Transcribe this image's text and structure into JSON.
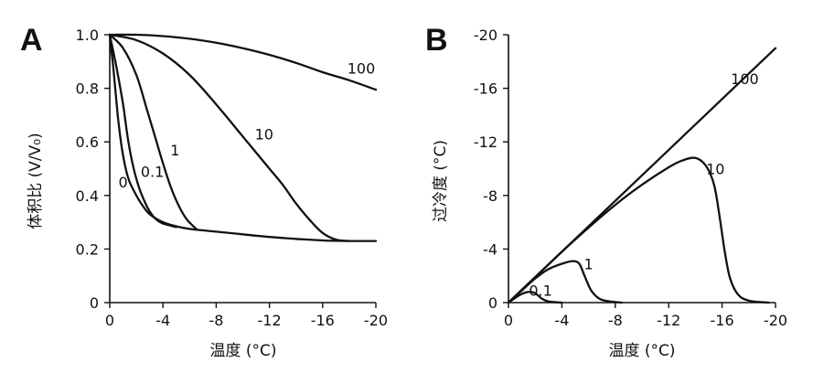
{
  "chart_data": [
    {
      "panel": "A",
      "type": "line",
      "xlabel": "温度 (°C)",
      "ylabel": "体积比 (V/V₀)",
      "xlim": [
        0,
        -20
      ],
      "ylim": [
        0,
        1.0
      ],
      "xticks": [
        0,
        -4,
        -8,
        -12,
        -16,
        -20
      ],
      "xtick_labels": [
        "0",
        "-4",
        "-8",
        "-12",
        "-16",
        "-20"
      ],
      "yticks": [
        0,
        0.2,
        0.4,
        0.6,
        0.8,
        1.0
      ],
      "ytick_labels": [
        "0",
        "0.2",
        "0.4",
        "0.6",
        "0.8",
        "1.0"
      ],
      "grid": false,
      "series": [
        {
          "name": "0",
          "points": [
            [
              0,
              1.0
            ],
            [
              -0.3,
              0.86
            ],
            [
              -0.6,
              0.7
            ],
            [
              -0.9,
              0.58
            ],
            [
              -1.2,
              0.5
            ],
            [
              -1.5,
              0.45
            ],
            [
              -2,
              0.4
            ],
            [
              -2.5,
              0.36
            ],
            [
              -3,
              0.33
            ],
            [
              -4,
              0.3
            ],
            [
              -5,
              0.285
            ],
            [
              -6,
              0.275
            ],
            [
              -8,
              0.265
            ],
            [
              -10,
              0.255
            ],
            [
              -12,
              0.245
            ],
            [
              -14,
              0.238
            ],
            [
              -16,
              0.232
            ],
            [
              -18,
              0.23
            ],
            [
              -20,
              0.23
            ]
          ]
        },
        {
          "name": "0.1",
          "points": [
            [
              0,
              1.0
            ],
            [
              -0.5,
              0.88
            ],
            [
              -1,
              0.74
            ],
            [
              -1.4,
              0.6
            ],
            [
              -1.8,
              0.5
            ],
            [
              -2.2,
              0.43
            ],
            [
              -2.6,
              0.38
            ],
            [
              -3,
              0.34
            ],
            [
              -3.5,
              0.31
            ],
            [
              -4,
              0.295
            ],
            [
              -5,
              0.282
            ]
          ]
        },
        {
          "name": "1",
          "points": [
            [
              0,
              1.0
            ],
            [
              -1,
              0.95
            ],
            [
              -2,
              0.85
            ],
            [
              -2.8,
              0.72
            ],
            [
              -3.4,
              0.62
            ],
            [
              -4,
              0.52
            ],
            [
              -4.6,
              0.43
            ],
            [
              -5.2,
              0.36
            ],
            [
              -5.8,
              0.31
            ],
            [
              -6.5,
              0.275
            ]
          ]
        },
        {
          "name": "10",
          "points": [
            [
              0,
              1.0
            ],
            [
              -2,
              0.98
            ],
            [
              -4,
              0.93
            ],
            [
              -6,
              0.85
            ],
            [
              -8,
              0.74
            ],
            [
              -10,
              0.62
            ],
            [
              -12,
              0.5
            ],
            [
              -13,
              0.44
            ],
            [
              -14,
              0.37
            ],
            [
              -15,
              0.31
            ],
            [
              -16,
              0.26
            ],
            [
              -17,
              0.235
            ],
            [
              -18,
              0.23
            ]
          ]
        },
        {
          "name": "100",
          "points": [
            [
              0,
              1.0
            ],
            [
              -2,
              1.0
            ],
            [
              -4,
              0.995
            ],
            [
              -6,
              0.985
            ],
            [
              -8,
              0.97
            ],
            [
              -10,
              0.95
            ],
            [
              -12,
              0.925
            ],
            [
              -14,
              0.895
            ],
            [
              -16,
              0.86
            ],
            [
              -18,
              0.83
            ],
            [
              -20,
              0.795
            ]
          ]
        }
      ],
      "curve_labels": [
        {
          "text": "0",
          "x": -1.0,
          "y": 0.43
        },
        {
          "text": "0.1",
          "x": -3.2,
          "y": 0.47
        },
        {
          "text": "1",
          "x": -4.9,
          "y": 0.55
        },
        {
          "text": "10",
          "x": -11.6,
          "y": 0.61
        },
        {
          "text": "100",
          "x": -18.9,
          "y": 0.855
        }
      ]
    },
    {
      "panel": "B",
      "type": "line",
      "xlabel": "温度 (°C)",
      "ylabel": "过冷度 (°C)",
      "xlim": [
        0,
        -20
      ],
      "ylim": [
        0,
        -20
      ],
      "xticks": [
        0,
        -4,
        -8,
        -12,
        -16,
        -20
      ],
      "xtick_labels": [
        "0",
        "-4",
        "-8",
        "-12",
        "-16",
        "-20"
      ],
      "yticks": [
        0,
        -4,
        -8,
        -12,
        -16,
        -20
      ],
      "ytick_labels": [
        "0",
        "-4",
        "-8",
        "-12",
        "-16",
        "-20"
      ],
      "grid": false,
      "series": [
        {
          "name": "100",
          "points": [
            [
              0,
              0
            ],
            [
              -20,
              -19
            ]
          ]
        },
        {
          "name": "10",
          "points": [
            [
              0,
              0
            ],
            [
              -2,
              -1.9
            ],
            [
              -4,
              -3.8
            ],
            [
              -6,
              -5.6
            ],
            [
              -8,
              -7.3
            ],
            [
              -10,
              -8.8
            ],
            [
              -12,
              -10.1
            ],
            [
              -13,
              -10.6
            ],
            [
              -14,
              -10.8
            ],
            [
              -14.8,
              -10.2
            ],
            [
              -15.4,
              -8.8
            ],
            [
              -15.8,
              -6.5
            ],
            [
              -16.2,
              -3.8
            ],
            [
              -16.6,
              -1.8
            ],
            [
              -17.2,
              -0.6
            ],
            [
              -18,
              -0.15
            ],
            [
              -19.5,
              0
            ]
          ]
        },
        {
          "name": "1",
          "points": [
            [
              0,
              0
            ],
            [
              -1,
              -0.9
            ],
            [
              -2,
              -1.8
            ],
            [
              -3,
              -2.5
            ],
            [
              -4,
              -2.9
            ],
            [
              -4.8,
              -3.1
            ],
            [
              -5.3,
              -2.9
            ],
            [
              -5.7,
              -2.0
            ],
            [
              -6.2,
              -0.9
            ],
            [
              -6.8,
              -0.3
            ],
            [
              -7.5,
              -0.1
            ],
            [
              -8.5,
              0
            ]
          ]
        },
        {
          "name": "0.1",
          "points": [
            [
              0,
              0
            ],
            [
              -0.5,
              -0.35
            ],
            [
              -1,
              -0.65
            ],
            [
              -1.5,
              -0.8
            ],
            [
              -2,
              -0.7
            ],
            [
              -2.5,
              -0.3
            ],
            [
              -3,
              -0.08
            ],
            [
              -4,
              0
            ]
          ]
        }
      ],
      "curve_labels": [
        {
          "text": "100",
          "x": -17.7,
          "y": -16.3
        },
        {
          "text": "10",
          "x": -15.5,
          "y": -9.6
        },
        {
          "text": "1",
          "x": -6.0,
          "y": -2.5
        },
        {
          "text": "0.1",
          "x": -2.4,
          "y": -0.5
        }
      ]
    }
  ]
}
